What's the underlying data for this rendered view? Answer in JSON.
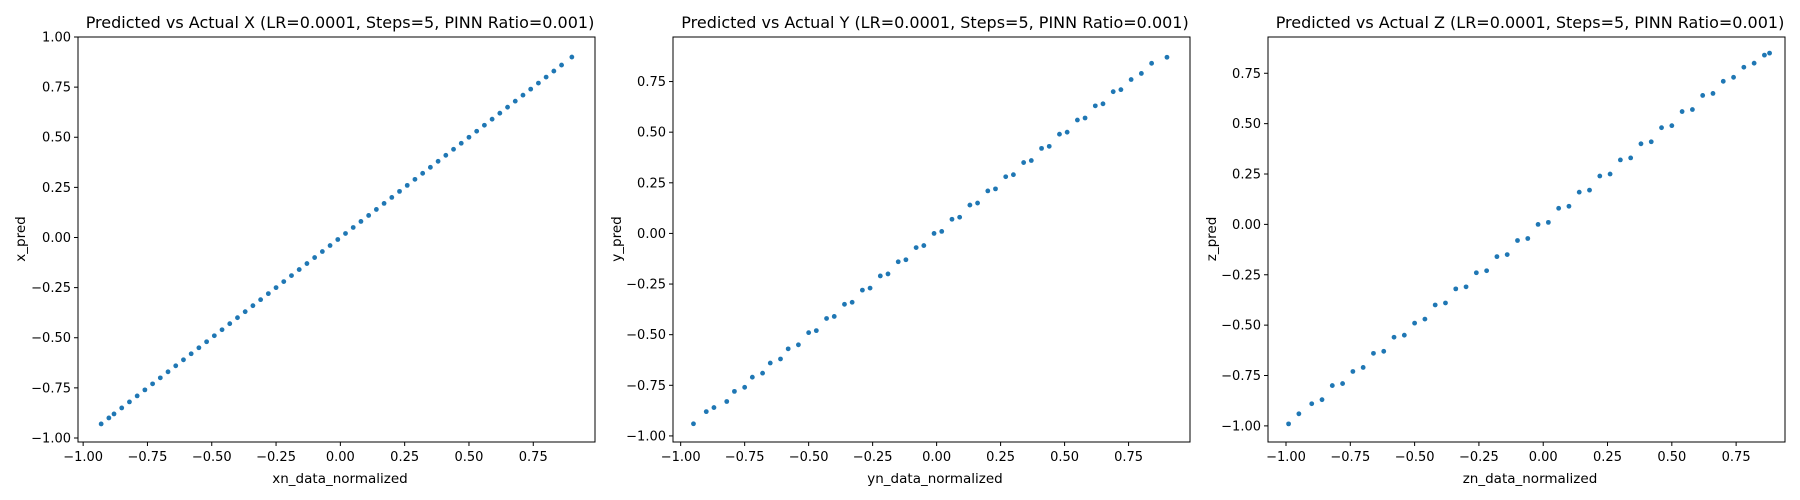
{
  "chart_data": [
    {
      "type": "scatter",
      "title": "Predicted vs Actual X (LR=0.0001, Steps=5, PINN Ratio=0.001)",
      "xlabel": "xn_data_normalized",
      "ylabel": "x_pred",
      "xlim": [
        -1.02,
        0.99
      ],
      "ylim": [
        -1.02,
        1.0
      ],
      "xticks": [
        -1.0,
        -0.75,
        -0.5,
        -0.25,
        0.0,
        0.25,
        0.5,
        0.75
      ],
      "xtick_labels": [
        "−1.00",
        "−0.75",
        "−0.50",
        "−0.25",
        "0.00",
        "0.25",
        "0.50",
        "0.75"
      ],
      "yticks": [
        -1.0,
        -0.75,
        -0.5,
        -0.25,
        0.0,
        0.25,
        0.5,
        0.75,
        1.0
      ],
      "ytick_labels": [
        "−1.00",
        "−0.75",
        "−0.50",
        "−0.25",
        "0.00",
        "0.25",
        "0.50",
        "0.75",
        "1.00"
      ],
      "color": "#1f77b4",
      "points": [
        [
          -0.93,
          -0.93
        ],
        [
          -0.9,
          -0.9
        ],
        [
          -0.88,
          -0.88
        ],
        [
          -0.85,
          -0.85
        ],
        [
          -0.82,
          -0.82
        ],
        [
          -0.79,
          -0.79
        ],
        [
          -0.76,
          -0.76
        ],
        [
          -0.73,
          -0.73
        ],
        [
          -0.7,
          -0.7
        ],
        [
          -0.67,
          -0.67
        ],
        [
          -0.64,
          -0.64
        ],
        [
          -0.61,
          -0.61
        ],
        [
          -0.58,
          -0.58
        ],
        [
          -0.55,
          -0.55
        ],
        [
          -0.52,
          -0.52
        ],
        [
          -0.49,
          -0.49
        ],
        [
          -0.46,
          -0.46
        ],
        [
          -0.43,
          -0.43
        ],
        [
          -0.4,
          -0.4
        ],
        [
          -0.37,
          -0.37
        ],
        [
          -0.34,
          -0.34
        ],
        [
          -0.31,
          -0.31
        ],
        [
          -0.28,
          -0.28
        ],
        [
          -0.25,
          -0.25
        ],
        [
          -0.22,
          -0.22
        ],
        [
          -0.19,
          -0.19
        ],
        [
          -0.16,
          -0.16
        ],
        [
          -0.13,
          -0.13
        ],
        [
          -0.1,
          -0.1
        ],
        [
          -0.07,
          -0.07
        ],
        [
          -0.04,
          -0.04
        ],
        [
          -0.01,
          -0.01
        ],
        [
          0.02,
          0.02
        ],
        [
          0.05,
          0.05
        ],
        [
          0.08,
          0.08
        ],
        [
          0.11,
          0.11
        ],
        [
          0.14,
          0.14
        ],
        [
          0.17,
          0.17
        ],
        [
          0.2,
          0.2
        ],
        [
          0.23,
          0.23
        ],
        [
          0.26,
          0.26
        ],
        [
          0.29,
          0.29
        ],
        [
          0.32,
          0.32
        ],
        [
          0.35,
          0.35
        ],
        [
          0.38,
          0.38
        ],
        [
          0.41,
          0.41
        ],
        [
          0.44,
          0.44
        ],
        [
          0.47,
          0.47
        ],
        [
          0.5,
          0.5
        ],
        [
          0.53,
          0.53
        ],
        [
          0.56,
          0.56
        ],
        [
          0.59,
          0.59
        ],
        [
          0.62,
          0.62
        ],
        [
          0.65,
          0.65
        ],
        [
          0.68,
          0.68
        ],
        [
          0.71,
          0.71
        ],
        [
          0.74,
          0.74
        ],
        [
          0.77,
          0.77
        ],
        [
          0.8,
          0.8
        ],
        [
          0.83,
          0.83
        ],
        [
          0.86,
          0.86
        ],
        [
          0.9,
          0.9
        ]
      ]
    },
    {
      "type": "scatter",
      "title": "Predicted vs Actual Y (LR=0.0001, Steps=5, PINN Ratio=0.001)",
      "xlabel": "yn_data_normalized",
      "ylabel": "y_pred",
      "xlim": [
        -1.03,
        0.99
      ],
      "ylim": [
        -1.03,
        0.97
      ],
      "xticks": [
        -1.0,
        -0.75,
        -0.5,
        -0.25,
        0.0,
        0.25,
        0.5,
        0.75
      ],
      "xtick_labels": [
        "−1.00",
        "−0.75",
        "−0.50",
        "−0.25",
        "0.00",
        "0.25",
        "0.50",
        "0.75"
      ],
      "yticks": [
        -1.0,
        -0.75,
        -0.5,
        -0.25,
        0.0,
        0.25,
        0.5,
        0.75
      ],
      "ytick_labels": [
        "−1.00",
        "−0.75",
        "−0.50",
        "−0.25",
        "0.00",
        "0.25",
        "0.50",
        "0.75"
      ],
      "color": "#1f77b4",
      "points": [
        [
          -0.95,
          -0.94
        ],
        [
          -0.9,
          -0.88
        ],
        [
          -0.87,
          -0.86
        ],
        [
          -0.82,
          -0.83
        ],
        [
          -0.79,
          -0.78
        ],
        [
          -0.75,
          -0.76
        ],
        [
          -0.72,
          -0.71
        ],
        [
          -0.68,
          -0.69
        ],
        [
          -0.65,
          -0.64
        ],
        [
          -0.61,
          -0.62
        ],
        [
          -0.58,
          -0.57
        ],
        [
          -0.54,
          -0.55
        ],
        [
          -0.5,
          -0.49
        ],
        [
          -0.47,
          -0.48
        ],
        [
          -0.43,
          -0.42
        ],
        [
          -0.4,
          -0.41
        ],
        [
          -0.36,
          -0.35
        ],
        [
          -0.33,
          -0.34
        ],
        [
          -0.29,
          -0.28
        ],
        [
          -0.26,
          -0.27
        ],
        [
          -0.22,
          -0.21
        ],
        [
          -0.19,
          -0.2
        ],
        [
          -0.15,
          -0.14
        ],
        [
          -0.12,
          -0.13
        ],
        [
          -0.08,
          -0.07
        ],
        [
          -0.05,
          -0.06
        ],
        [
          -0.01,
          0.0
        ],
        [
          0.02,
          0.01
        ],
        [
          0.06,
          0.07
        ],
        [
          0.09,
          0.08
        ],
        [
          0.13,
          0.14
        ],
        [
          0.16,
          0.15
        ],
        [
          0.2,
          0.21
        ],
        [
          0.23,
          0.22
        ],
        [
          0.27,
          0.28
        ],
        [
          0.3,
          0.29
        ],
        [
          0.34,
          0.35
        ],
        [
          0.37,
          0.36
        ],
        [
          0.41,
          0.42
        ],
        [
          0.44,
          0.43
        ],
        [
          0.48,
          0.49
        ],
        [
          0.51,
          0.5
        ],
        [
          0.55,
          0.56
        ],
        [
          0.58,
          0.57
        ],
        [
          0.62,
          0.63
        ],
        [
          0.65,
          0.64
        ],
        [
          0.69,
          0.7
        ],
        [
          0.72,
          0.71
        ],
        [
          0.76,
          0.76
        ],
        [
          0.8,
          0.79
        ],
        [
          0.84,
          0.84
        ],
        [
          0.9,
          0.87
        ]
      ]
    },
    {
      "type": "scatter",
      "title": "Predicted vs Actual Z (LR=0.0001, Steps=5, PINN Ratio=0.001)",
      "xlabel": "zn_data_normalized",
      "ylabel": "z_pred",
      "xlim": [
        -1.07,
        0.94
      ],
      "ylim": [
        -1.08,
        0.93
      ],
      "xticks": [
        -1.0,
        -0.75,
        -0.5,
        -0.25,
        0.0,
        0.25,
        0.5,
        0.75
      ],
      "xtick_labels": [
        "−1.00",
        "−0.75",
        "−0.50",
        "−0.25",
        "0.00",
        "0.25",
        "0.50",
        "0.75"
      ],
      "yticks": [
        -1.0,
        -0.75,
        -0.5,
        -0.25,
        0.0,
        0.25,
        0.5,
        0.75
      ],
      "ytick_labels": [
        "−1.00",
        "−0.75",
        "−0.50",
        "−0.25",
        "0.00",
        "0.25",
        "0.50",
        "0.75"
      ],
      "color": "#1f77b4",
      "points": [
        [
          -0.99,
          -0.99
        ],
        [
          -0.95,
          -0.94
        ],
        [
          -0.9,
          -0.89
        ],
        [
          -0.86,
          -0.87
        ],
        [
          -0.82,
          -0.8
        ],
        [
          -0.78,
          -0.79
        ],
        [
          -0.74,
          -0.73
        ],
        [
          -0.7,
          -0.71
        ],
        [
          -0.66,
          -0.64
        ],
        [
          -0.62,
          -0.63
        ],
        [
          -0.58,
          -0.56
        ],
        [
          -0.54,
          -0.55
        ],
        [
          -0.5,
          -0.49
        ],
        [
          -0.46,
          -0.47
        ],
        [
          -0.42,
          -0.4
        ],
        [
          -0.38,
          -0.39
        ],
        [
          -0.34,
          -0.32
        ],
        [
          -0.3,
          -0.31
        ],
        [
          -0.26,
          -0.24
        ],
        [
          -0.22,
          -0.23
        ],
        [
          -0.18,
          -0.16
        ],
        [
          -0.14,
          -0.15
        ],
        [
          -0.1,
          -0.08
        ],
        [
          -0.06,
          -0.07
        ],
        [
          -0.02,
          0.0
        ],
        [
          0.02,
          0.01
        ],
        [
          0.06,
          0.08
        ],
        [
          0.1,
          0.09
        ],
        [
          0.14,
          0.16
        ],
        [
          0.18,
          0.17
        ],
        [
          0.22,
          0.24
        ],
        [
          0.26,
          0.25
        ],
        [
          0.3,
          0.32
        ],
        [
          0.34,
          0.33
        ],
        [
          0.38,
          0.4
        ],
        [
          0.42,
          0.41
        ],
        [
          0.46,
          0.48
        ],
        [
          0.5,
          0.49
        ],
        [
          0.54,
          0.56
        ],
        [
          0.58,
          0.57
        ],
        [
          0.62,
          0.64
        ],
        [
          0.66,
          0.65
        ],
        [
          0.7,
          0.71
        ],
        [
          0.74,
          0.73
        ],
        [
          0.78,
          0.78
        ],
        [
          0.82,
          0.8
        ],
        [
          0.86,
          0.84
        ],
        [
          0.88,
          0.85
        ]
      ]
    }
  ]
}
